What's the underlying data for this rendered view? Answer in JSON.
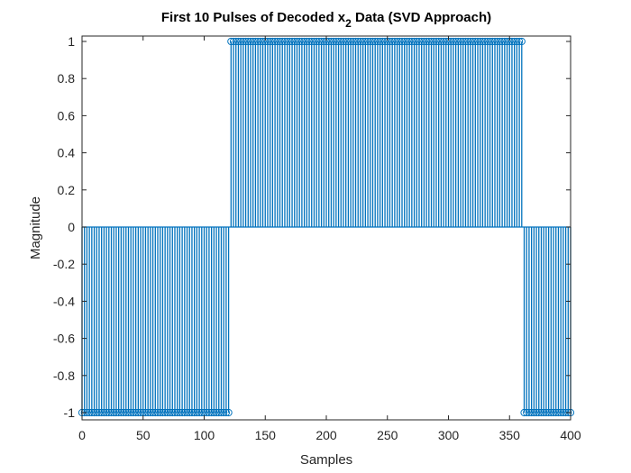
{
  "chart_data": {
    "type": "stem",
    "title_prefix": "First 10 Pulses of Decoded x",
    "title_subscript": "2",
    "title_suffix": " Data (SVD Approach)",
    "xlabel": "Samples",
    "ylabel": "Magnitude",
    "xlim": [
      0,
      400
    ],
    "ylim": [
      -1,
      1
    ],
    "x_ticks": [
      0,
      50,
      100,
      150,
      200,
      250,
      300,
      350,
      400
    ],
    "y_ticks": [
      -1,
      -0.8,
      -0.6,
      -0.4,
      -0.2,
      0,
      0.2,
      0.4,
      0.6,
      0.8,
      1
    ],
    "x_tick_labels": [
      "0",
      "50",
      "100",
      "150",
      "200",
      "250",
      "300",
      "350",
      "400"
    ],
    "y_tick_labels": [
      "-1",
      "-0.8",
      "-0.6",
      "-0.4",
      "-0.2",
      "0",
      "0.2",
      "0.4",
      "0.6",
      "0.8",
      "1"
    ],
    "series": [
      {
        "x_start": 0,
        "x_end": 400,
        "x_step": 2,
        "segments": [
          {
            "from": 0,
            "to": 120,
            "value": -1
          },
          {
            "from": 122,
            "to": 360,
            "value": 1
          },
          {
            "from": 362,
            "to": 400,
            "value": -1
          }
        ]
      }
    ],
    "grid": false,
    "color": "#0072BD"
  }
}
